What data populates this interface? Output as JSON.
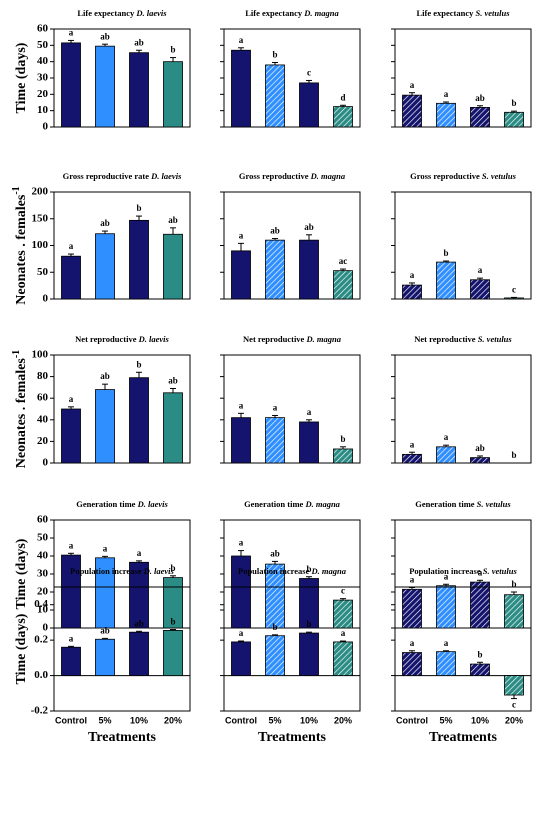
{
  "chart_data": [
    {
      "type": "bar",
      "title": "Life expectancy",
      "title_species": "D. laevis",
      "ylabel": "Time (days)",
      "categories": [
        null,
        null,
        null,
        null
      ],
      "values": [
        51.5,
        49.5,
        45.5,
        40
      ],
      "errors": [
        1.5,
        1.2,
        1.5,
        2.5
      ],
      "significance_labels": [
        "a",
        "ab",
        "ab",
        "b"
      ],
      "colors": [
        "#14146e",
        "#2f8fff",
        "#14146e",
        "#2a8c84"
      ],
      "hatch": [
        false,
        false,
        false,
        false
      ],
      "ylim": [
        0,
        60
      ],
      "yticks": [
        0,
        10,
        20,
        30,
        40,
        50,
        60
      ]
    },
    {
      "type": "bar",
      "title": "Life expectancy",
      "title_species": "D. magna",
      "categories": [
        null,
        null,
        null,
        null
      ],
      "values": [
        47,
        38,
        27,
        12.5
      ],
      "errors": [
        1.5,
        1.5,
        1.5,
        0.8
      ],
      "significance_labels": [
        "a",
        "b",
        "c",
        "d"
      ],
      "colors": [
        "#14146e",
        "#2f8fff",
        "#14146e",
        "#2a8c84"
      ],
      "hatch": [
        false,
        true,
        false,
        true
      ],
      "ylim": [
        0,
        60
      ]
    },
    {
      "type": "bar",
      "title": "Life expectancy",
      "title_species": "S. vetulus",
      "categories": [
        null,
        null,
        null,
        null
      ],
      "values": [
        19.5,
        14.5,
        12,
        9
      ],
      "errors": [
        1.5,
        0.8,
        1,
        0.7
      ],
      "significance_labels": [
        "a",
        "a",
        "ab",
        "b"
      ],
      "colors": [
        "#14146e",
        "#2f8fff",
        "#14146e",
        "#2a8c84"
      ],
      "hatch": [
        true,
        true,
        true,
        true
      ],
      "ylim": [
        0,
        60
      ]
    },
    {
      "type": "bar",
      "title": "Gross reproductive rate",
      "title_species": "D. laevis",
      "ylabel": "Neonates . females",
      "ylabel_sup": "-1",
      "categories": [
        null,
        null,
        null,
        null
      ],
      "values": [
        80,
        122,
        147,
        121
      ],
      "errors": [
        4,
        5,
        8,
        12
      ],
      "significance_labels": [
        "a",
        "ab",
        "b",
        "ab"
      ],
      "colors": [
        "#14146e",
        "#2f8fff",
        "#14146e",
        "#2a8c84"
      ],
      "hatch": [
        false,
        false,
        false,
        false
      ],
      "ylim": [
        0,
        200
      ],
      "yticks": [
        0,
        50,
        100,
        150,
        200
      ]
    },
    {
      "type": "bar",
      "title": "Gross reproductive",
      "title_species": "D. magna",
      "categories": [
        null,
        null,
        null,
        null
      ],
      "values": [
        90,
        110,
        110,
        53
      ],
      "errors": [
        14,
        3,
        10,
        3
      ],
      "significance_labels": [
        "a",
        "ab",
        "ab",
        "ac"
      ],
      "colors": [
        "#14146e",
        "#2f8fff",
        "#14146e",
        "#2a8c84"
      ],
      "hatch": [
        false,
        true,
        false,
        true
      ],
      "ylim": [
        0,
        200
      ]
    },
    {
      "type": "bar",
      "title": "Gross reproductive",
      "title_species": "S. vetulus",
      "categories": [
        null,
        null,
        null,
        null
      ],
      "values": [
        26,
        69,
        36,
        2
      ],
      "errors": [
        4,
        2,
        3,
        1
      ],
      "significance_labels": [
        "a",
        "b",
        "a",
        "c"
      ],
      "colors": [
        "#14146e",
        "#2f8fff",
        "#14146e",
        "#2a8c84"
      ],
      "hatch": [
        true,
        true,
        true,
        true
      ],
      "ylim": [
        0,
        200
      ]
    },
    {
      "type": "bar",
      "title": "Net reproductive",
      "title_species": "D. laevis",
      "ylabel": "Neonates . females",
      "ylabel_sup": "-1",
      "categories": [
        null,
        null,
        null,
        null
      ],
      "values": [
        50,
        68,
        79,
        65
      ],
      "errors": [
        2,
        5,
        5,
        4
      ],
      "significance_labels": [
        "a",
        "ab",
        "b",
        "ab"
      ],
      "colors": [
        "#14146e",
        "#2f8fff",
        "#14146e",
        "#2a8c84"
      ],
      "hatch": [
        false,
        false,
        false,
        false
      ],
      "ylim": [
        0,
        100
      ],
      "yticks": [
        0,
        20,
        40,
        60,
        80,
        100
      ]
    },
    {
      "type": "bar",
      "title": "Net reproductive",
      "title_species": "D. magna",
      "categories": [
        null,
        null,
        null,
        null
      ],
      "values": [
        42,
        42,
        38,
        13
      ],
      "errors": [
        4,
        2,
        2,
        2
      ],
      "significance_labels": [
        "a",
        "a",
        "a",
        "b"
      ],
      "colors": [
        "#14146e",
        "#2f8fff",
        "#14146e",
        "#2a8c84"
      ],
      "hatch": [
        false,
        true,
        false,
        true
      ],
      "ylim": [
        0,
        100
      ]
    },
    {
      "type": "bar",
      "title": "Net reproductive",
      "title_species": "S. vetulus",
      "categories": [
        null,
        null,
        null,
        null
      ],
      "values": [
        8,
        15,
        5,
        0
      ],
      "errors": [
        2,
        1.5,
        1.5,
        0
      ],
      "significance_labels": [
        "a",
        "a",
        "ab",
        "b"
      ],
      "colors": [
        "#14146e",
        "#2f8fff",
        "#14146e",
        "#2a8c84"
      ],
      "hatch": [
        true,
        true,
        true,
        true
      ],
      "ylim": [
        0,
        100
      ]
    },
    {
      "type": "bar",
      "title": "Generation time",
      "title_species": "D. laevis",
      "ylabel": "Time (days)",
      "categories": [
        null,
        null,
        null,
        null
      ],
      "values": [
        40.5,
        39,
        36.5,
        28
      ],
      "errors": [
        1,
        0.8,
        0.8,
        1
      ],
      "significance_labels": [
        "a",
        "a",
        "a",
        "b"
      ],
      "colors": [
        "#14146e",
        "#2f8fff",
        "#14146e",
        "#2a8c84"
      ],
      "hatch": [
        false,
        false,
        false,
        false
      ],
      "ylim": [
        0,
        60
      ],
      "yticks": [
        0,
        10,
        20,
        30,
        40,
        50,
        60
      ]
    },
    {
      "type": "bar",
      "title": "Generation time",
      "title_species": "D. magna",
      "categories": [
        null,
        null,
        null,
        null
      ],
      "values": [
        40,
        35.5,
        27.5,
        15.5
      ],
      "errors": [
        3,
        1.5,
        1,
        0.8
      ],
      "significance_labels": [
        "a",
        "ab",
        "b",
        "c"
      ],
      "colors": [
        "#14146e",
        "#2f8fff",
        "#14146e",
        "#2a8c84"
      ],
      "hatch": [
        false,
        true,
        false,
        true
      ],
      "ylim": [
        0,
        60
      ]
    },
    {
      "type": "bar",
      "title": "Generation time",
      "title_species": "S. vetulus",
      "categories": [
        null,
        null,
        null,
        null
      ],
      "values": [
        21.5,
        23.5,
        25.5,
        18.5
      ],
      "errors": [
        1,
        0.8,
        1,
        1.5
      ],
      "significance_labels": [
        "a",
        "a",
        "a",
        "b"
      ],
      "colors": [
        "#14146e",
        "#2f8fff",
        "#14146e",
        "#2a8c84"
      ],
      "hatch": [
        true,
        true,
        true,
        true
      ],
      "ylim": [
        0,
        60
      ]
    },
    {
      "type": "bar",
      "title": "Population increase",
      "title_species": "D. laevis",
      "ylabel": "Time (days)",
      "xlabel": "Treatments",
      "categories": [
        "Control",
        "5%",
        "10%",
        "20%"
      ],
      "values": [
        0.16,
        0.205,
        0.245,
        0.255
      ],
      "errors": [
        0.005,
        0.005,
        0.005,
        0.005
      ],
      "significance_labels": [
        "a",
        "ab",
        "ab",
        "b"
      ],
      "colors": [
        "#14146e",
        "#2f8fff",
        "#14146e",
        "#2a8c84"
      ],
      "hatch": [
        false,
        false,
        false,
        false
      ],
      "ylim": [
        -0.2,
        0.5
      ],
      "yticks": [
        -0.2,
        {
          "value": 0,
          "label": "0.0"
        },
        0.2,
        0.4
      ]
    },
    {
      "type": "bar",
      "title": "Population increase",
      "title_species": "D. magna",
      "xlabel": "Treatments",
      "categories": [
        "Control",
        "5%",
        "10%",
        "20%"
      ],
      "values": [
        0.19,
        0.225,
        0.24,
        0.19
      ],
      "errors": [
        0.005,
        0.005,
        0.005,
        0.005
      ],
      "significance_labels": [
        "a",
        "b",
        "b",
        "a"
      ],
      "colors": [
        "#14146e",
        "#2f8fff",
        "#14146e",
        "#2a8c84"
      ],
      "hatch": [
        false,
        true,
        false,
        true
      ],
      "ylim": [
        -0.2,
        0.5
      ]
    },
    {
      "type": "bar",
      "title": "Population increase",
      "title_species": "S. vetulus",
      "xlabel": "Treatments",
      "categories": [
        "Control",
        "5%",
        "10%",
        "20%"
      ],
      "values": [
        0.13,
        0.135,
        0.065,
        -0.11
      ],
      "errors": [
        0.01,
        0.005,
        0.01,
        0.02
      ],
      "significance_labels": [
        "a",
        "a",
        "b",
        "c"
      ],
      "colors": [
        "#14146e",
        "#2f8fff",
        "#14146e",
        "#2a8c84"
      ],
      "hatch": [
        true,
        true,
        true,
        true
      ],
      "ylim": [
        -0.2,
        0.5
      ]
    }
  ]
}
